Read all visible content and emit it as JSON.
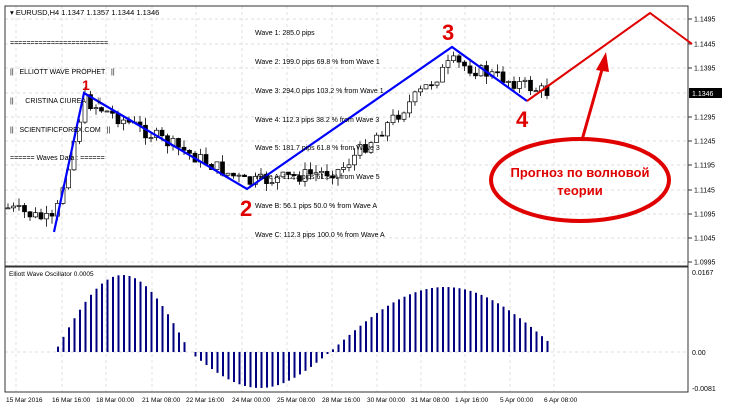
{
  "header": {
    "symbol": "EURUSD,H4",
    "ohlc": "1.1347 1.1357 1.1344 1.1346"
  },
  "indicator_box": {
    "lines": [
      "========================",
      "||   ELLIOTT WAVE PROPHET   ||",
      "||      CRISTINA CIUREA      ||",
      "||   SCIENTIFICFOREX.COM   ||",
      "====== Waves Data : ======"
    ]
  },
  "waves_data": [
    "Wave 1: 285.0 pips",
    "Wave 2: 199.0 pips 69.8 % from Wave 1",
    "Wave 3: 294.0 pips 103.2 % from Wave 1",
    "Wave 4: 112.3 pips 38.2 % from Wave 3",
    "Wave 5: 181.7 pips 61.8 % from Wave 3",
    "Wave A: 112.3 pips 61.8 % from Wave 5",
    "Wave B: 56.1 pips 50.0 % from Wave A",
    "Wave C: 112.3 pips 100.0 % from Wave A"
  ],
  "wave_labels": [
    "1",
    "2",
    "3",
    "4"
  ],
  "forecast_note": {
    "line1": "Прогноз по волновой",
    "line2": "теории"
  },
  "price_axis": [
    "1.1495",
    "1.1445",
    "1.1395",
    "1.1295",
    "1.1245",
    "1.1195",
    "1.1145",
    "1.1095",
    "1.1045",
    "1.0995"
  ],
  "current_price": "1.1346",
  "time_axis": [
    "15 Mar 2016",
    "16 Mar 16:00",
    "18 Mar 00:00",
    "21 Mar 08:00",
    "22 Mar 16:00",
    "24 Mar 00:00",
    "25 Mar 08:00",
    "28 Mar 16:00",
    "30 Mar 00:00",
    "31 Mar 08:00",
    "1 Apr 16:00",
    "5 Apr 00:00",
    "6 Apr 08:00"
  ],
  "oscillator": {
    "title": "Elliott Wave Oscillator 0.0005",
    "axis": [
      "0.0167",
      "0.00",
      "-0.0081"
    ]
  },
  "colors": {
    "wave": "#0000ff",
    "forecast": "#e00000",
    "oscillator": "#000080",
    "note": "#e00000"
  }
}
